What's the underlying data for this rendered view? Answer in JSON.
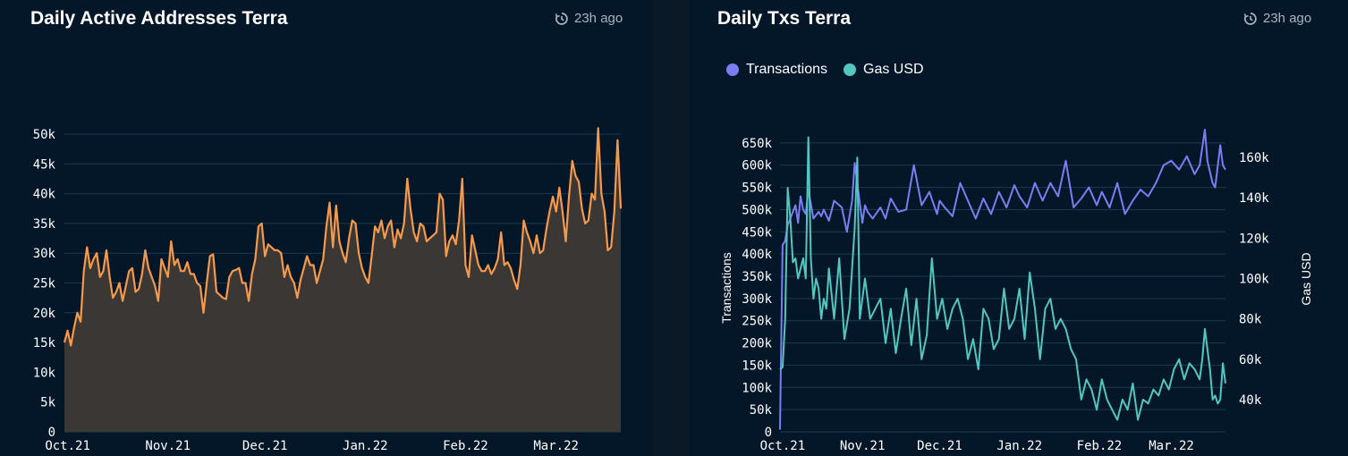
{
  "panels": {
    "left": {
      "title": "Daily Active Addresses Terra",
      "updated": "23h ago"
    },
    "right": {
      "title": "Daily Txs Terra",
      "updated": "23h ago"
    }
  },
  "chart_data": [
    {
      "type": "area",
      "title": "Daily Active Addresses Terra",
      "xlabel": "",
      "ylabel": "",
      "ylim": [
        0,
        50000
      ],
      "yticks": [
        0,
        5000,
        10000,
        15000,
        20000,
        25000,
        30000,
        35000,
        40000,
        45000,
        50000
      ],
      "ytick_labels": [
        "0",
        "5k",
        "10k",
        "15k",
        "20k",
        "25k",
        "30k",
        "35k",
        "40k",
        "45k",
        "50k"
      ],
      "x_start": "2021-09-30",
      "x_end": "2022-03-21",
      "xticks": [
        {
          "date": "2021-10-01",
          "label": "Oct.21"
        },
        {
          "date": "2021-11-01",
          "label": "Nov.21"
        },
        {
          "date": "2021-12-01",
          "label": "Dec.21"
        },
        {
          "date": "2022-01-01",
          "label": "Jan.22"
        },
        {
          "date": "2022-02-01",
          "label": "Feb.22"
        },
        {
          "date": "2022-03-01",
          "label": "Mar.22"
        }
      ],
      "grid": true,
      "series": [
        {
          "color": "#f7994a",
          "fill": "#3a3734",
          "x": [
            "2021-09-30",
            "2021-10-01",
            "2021-10-02",
            "2021-10-03",
            "2021-10-04",
            "2021-10-05",
            "2021-10-06",
            "2021-10-07",
            "2021-10-08",
            "2021-10-09",
            "2021-10-10",
            "2021-10-11",
            "2021-10-12",
            "2021-10-13",
            "2021-10-14",
            "2021-10-15",
            "2021-10-16",
            "2021-10-17",
            "2021-10-18",
            "2021-10-19",
            "2021-10-20",
            "2021-10-21",
            "2021-10-22",
            "2021-10-23",
            "2021-10-24",
            "2021-10-25",
            "2021-10-26",
            "2021-10-27",
            "2021-10-28",
            "2021-10-29",
            "2021-10-30",
            "2021-10-31",
            "2021-11-01",
            "2021-11-02",
            "2021-11-03",
            "2021-11-04",
            "2021-11-05",
            "2021-11-06",
            "2021-11-07",
            "2021-11-08",
            "2021-11-09",
            "2021-11-10",
            "2021-11-11",
            "2021-11-12",
            "2021-11-13",
            "2021-11-14",
            "2021-11-15",
            "2021-11-16",
            "2021-11-17",
            "2021-11-18",
            "2021-11-19",
            "2021-11-20",
            "2021-11-21",
            "2021-11-22",
            "2021-11-23",
            "2021-11-24",
            "2021-11-25",
            "2021-11-26",
            "2021-11-27",
            "2021-11-28",
            "2021-11-29",
            "2021-11-30",
            "2021-12-01",
            "2021-12-02",
            "2021-12-03",
            "2021-12-04",
            "2021-12-05",
            "2021-12-06",
            "2021-12-07",
            "2021-12-08",
            "2021-12-09",
            "2021-12-10",
            "2021-12-11",
            "2021-12-12",
            "2021-12-13",
            "2021-12-14",
            "2021-12-15",
            "2021-12-16",
            "2021-12-17",
            "2021-12-18",
            "2021-12-19",
            "2021-12-20",
            "2021-12-21",
            "2021-12-22",
            "2021-12-23",
            "2021-12-24",
            "2021-12-25",
            "2021-12-26",
            "2021-12-27",
            "2021-12-28",
            "2021-12-29",
            "2021-12-30",
            "2021-12-31",
            "2022-01-01",
            "2022-01-02",
            "2022-01-03",
            "2022-01-04",
            "2022-01-05",
            "2022-01-06",
            "2022-01-07",
            "2022-01-08",
            "2022-01-09",
            "2022-01-10",
            "2022-01-11",
            "2022-01-12",
            "2022-01-13",
            "2022-01-14",
            "2022-01-15",
            "2022-01-16",
            "2022-01-17",
            "2022-01-18",
            "2022-01-19",
            "2022-01-20",
            "2022-01-21",
            "2022-01-22",
            "2022-01-23",
            "2022-01-24",
            "2022-01-25",
            "2022-01-26",
            "2022-01-27",
            "2022-01-28",
            "2022-01-29",
            "2022-01-30",
            "2022-01-31",
            "2022-02-01",
            "2022-02-02",
            "2022-02-03",
            "2022-02-04",
            "2022-02-05",
            "2022-02-06",
            "2022-02-07",
            "2022-02-08",
            "2022-02-09",
            "2022-02-10",
            "2022-02-11",
            "2022-02-12",
            "2022-02-13",
            "2022-02-14",
            "2022-02-15",
            "2022-02-16",
            "2022-02-17",
            "2022-02-18",
            "2022-02-19",
            "2022-02-20",
            "2022-02-21",
            "2022-02-22",
            "2022-02-23",
            "2022-02-24",
            "2022-02-25",
            "2022-02-26",
            "2022-02-27",
            "2022-02-28",
            "2022-03-01",
            "2022-03-02",
            "2022-03-03",
            "2022-03-04",
            "2022-03-05",
            "2022-03-06",
            "2022-03-07",
            "2022-03-08",
            "2022-03-09",
            "2022-03-10",
            "2022-03-11",
            "2022-03-12",
            "2022-03-13",
            "2022-03-14",
            "2022-03-15",
            "2022-03-16",
            "2022-03-17",
            "2022-03-18",
            "2022-03-19",
            "2022-03-20",
            "2022-03-21"
          ],
          "values": [
            15000,
            17000,
            14500,
            17500,
            20000,
            18500,
            27000,
            31000,
            27500,
            29000,
            30000,
            26000,
            27000,
            30500,
            26000,
            22500,
            23500,
            25000,
            22000,
            24500,
            27000,
            27500,
            23500,
            24000,
            26500,
            30500,
            27500,
            26000,
            24500,
            22000,
            29000,
            27500,
            26000,
            32000,
            28000,
            29000,
            27000,
            27000,
            28500,
            26500,
            26500,
            25000,
            24500,
            20000,
            25000,
            29500,
            29800,
            23500,
            23000,
            22500,
            22300,
            26000,
            27000,
            27200,
            27500,
            25000,
            25000,
            22000,
            26500,
            29000,
            34500,
            35000,
            29500,
            31500,
            31000,
            30500,
            30500,
            30000,
            26000,
            28000,
            26000,
            25000,
            22500,
            25500,
            27500,
            29500,
            28000,
            28000,
            25000,
            27000,
            29000,
            34500,
            38500,
            31000,
            38000,
            32000,
            30000,
            28500,
            32500,
            35500,
            35000,
            30000,
            27500,
            26000,
            25000,
            29500,
            34500,
            33500,
            35500,
            32500,
            34500,
            35500,
            31000,
            34000,
            32500,
            35000,
            42500,
            37500,
            33500,
            32000,
            35000,
            34500,
            32000,
            32500,
            33000,
            33500,
            40000,
            39000,
            29500,
            32000,
            33000,
            31500,
            35500,
            42500,
            28000,
            26000,
            33000,
            30500,
            28000,
            27000,
            27000,
            28000,
            26500,
            27500,
            29000,
            33500,
            28000,
            28500,
            27500,
            25500,
            24000,
            28000,
            35500,
            33500,
            32000,
            30000,
            33000,
            30000,
            30500,
            34000,
            37000,
            39500,
            37000,
            41000,
            37000,
            32000,
            39500,
            45500,
            43000,
            42000,
            37500,
            35000,
            35500,
            40000,
            39000,
            51000,
            40000,
            37000,
            30500,
            31000,
            37000,
            49000,
            37500
          ]
        }
      ]
    },
    {
      "type": "line",
      "title": "Daily Txs Terra",
      "ylabel": "Transactions",
      "y2label": "Gas USD",
      "ylim": [
        0,
        690000
      ],
      "y2lim": [
        24000,
        176000
      ],
      "yticks": [
        0,
        50000,
        100000,
        150000,
        200000,
        250000,
        300000,
        350000,
        400000,
        450000,
        500000,
        550000,
        600000,
        650000
      ],
      "ytick_labels": [
        "0",
        "50k",
        "100k",
        "150k",
        "200k",
        "250k",
        "300k",
        "350k",
        "400k",
        "450k",
        "500k",
        "550k",
        "600k",
        "650k"
      ],
      "y2ticks": [
        40000,
        60000,
        80000,
        100000,
        120000,
        140000,
        160000
      ],
      "y2tick_labels": [
        "40k",
        "60k",
        "80k",
        "100k",
        "120k",
        "140k",
        "160k"
      ],
      "x_start": "2021-09-30",
      "x_end": "2022-03-22",
      "xticks": [
        {
          "date": "2021-10-01",
          "label": "Oct.21"
        },
        {
          "date": "2021-11-01",
          "label": "Nov.21"
        },
        {
          "date": "2021-12-01",
          "label": "Dec.21"
        },
        {
          "date": "2022-01-01",
          "label": "Jan.22"
        },
        {
          "date": "2022-02-01",
          "label": "Feb.22"
        },
        {
          "date": "2022-03-01",
          "label": "Mar.22"
        }
      ],
      "legend": "top-left",
      "grid": true,
      "series": [
        {
          "name": "Transactions",
          "color": "#7b7ef2",
          "axis": "left",
          "x": [
            "2021-09-30",
            "2021-10-01",
            "2021-10-02",
            "2021-10-03",
            "2021-10-04",
            "2021-10-06",
            "2021-10-07",
            "2021-10-08",
            "2021-10-09",
            "2021-10-10",
            "2021-10-11",
            "2021-10-13",
            "2021-10-15",
            "2021-10-16",
            "2021-10-17",
            "2021-10-19",
            "2021-10-21",
            "2021-10-24",
            "2021-10-26",
            "2021-10-28",
            "2021-10-29",
            "2021-11-01",
            "2021-11-02",
            "2021-11-03",
            "2021-11-05",
            "2021-11-08",
            "2021-11-10",
            "2021-11-12",
            "2021-11-15",
            "2021-11-18",
            "2021-11-21",
            "2021-11-24",
            "2021-11-27",
            "2021-11-30",
            "2021-12-01",
            "2021-12-03",
            "2021-12-06",
            "2021-12-09",
            "2021-12-12",
            "2021-12-15",
            "2021-12-18",
            "2021-12-21",
            "2021-12-24",
            "2021-12-27",
            "2021-12-30",
            "2022-01-01",
            "2022-01-04",
            "2022-01-07",
            "2022-01-10",
            "2022-01-13",
            "2022-01-16",
            "2022-01-19",
            "2022-01-22",
            "2022-01-25",
            "2022-01-28",
            "2022-01-31",
            "2022-02-02",
            "2022-02-05",
            "2022-02-08",
            "2022-02-11",
            "2022-02-14",
            "2022-02-17",
            "2022-02-20",
            "2022-02-23",
            "2022-02-26",
            "2022-03-01",
            "2022-03-04",
            "2022-03-07",
            "2022-03-10",
            "2022-03-12",
            "2022-03-14",
            "2022-03-15",
            "2022-03-17",
            "2022-03-18",
            "2022-03-20",
            "2022-03-21",
            "2022-03-22"
          ],
          "values": [
            5000,
            420000,
            430000,
            465000,
            480000,
            510000,
            470000,
            530000,
            500000,
            490000,
            545000,
            480000,
            495000,
            485000,
            500000,
            475000,
            520000,
            505000,
            450000,
            520000,
            605000,
            470000,
            510000,
            495000,
            480000,
            505000,
            480000,
            525000,
            495000,
            500000,
            600000,
            510000,
            540000,
            490000,
            520000,
            505000,
            485000,
            560000,
            520000,
            480000,
            525000,
            490000,
            540000,
            505000,
            555000,
            530000,
            505000,
            560000,
            520000,
            560000,
            530000,
            610000,
            505000,
            525000,
            550000,
            510000,
            540000,
            505000,
            560000,
            490000,
            520000,
            545000,
            530000,
            560000,
            600000,
            610000,
            590000,
            620000,
            580000,
            600000,
            680000,
            610000,
            560000,
            550000,
            645000,
            600000,
            590000
          ]
        },
        {
          "name": "Gas USD",
          "color": "#52c6bf",
          "axis": "right",
          "x": [
            "2021-09-30",
            "2021-10-01",
            "2021-10-02",
            "2021-10-03",
            "2021-10-04",
            "2021-10-05",
            "2021-10-06",
            "2021-10-07",
            "2021-10-08",
            "2021-10-09",
            "2021-10-10",
            "2021-10-11",
            "2021-10-12",
            "2021-10-13",
            "2021-10-14",
            "2021-10-15",
            "2021-10-16",
            "2021-10-17",
            "2021-10-18",
            "2021-10-19",
            "2021-10-21",
            "2021-10-23",
            "2021-10-25",
            "2021-10-27",
            "2021-10-29",
            "2021-10-30",
            "2021-10-31",
            "2021-11-02",
            "2021-11-04",
            "2021-11-06",
            "2021-11-08",
            "2021-11-10",
            "2021-11-12",
            "2021-11-14",
            "2021-11-16",
            "2021-11-18",
            "2021-11-20",
            "2021-11-22",
            "2021-11-24",
            "2021-11-26",
            "2021-11-28",
            "2021-11-30",
            "2021-12-02",
            "2021-12-04",
            "2021-12-06",
            "2021-12-08",
            "2021-12-10",
            "2021-12-12",
            "2021-12-14",
            "2021-12-16",
            "2021-12-18",
            "2021-12-20",
            "2021-12-22",
            "2021-12-24",
            "2021-12-26",
            "2021-12-28",
            "2021-12-30",
            "2022-01-01",
            "2022-01-03",
            "2022-01-05",
            "2022-01-07",
            "2022-01-09",
            "2022-01-11",
            "2022-01-13",
            "2022-01-15",
            "2022-01-17",
            "2022-01-19",
            "2022-01-21",
            "2022-01-23",
            "2022-01-25",
            "2022-01-27",
            "2022-01-29",
            "2022-01-31",
            "2022-02-02",
            "2022-02-04",
            "2022-02-06",
            "2022-02-08",
            "2022-02-10",
            "2022-02-12",
            "2022-02-14",
            "2022-02-16",
            "2022-02-18",
            "2022-02-20",
            "2022-02-22",
            "2022-02-24",
            "2022-02-26",
            "2022-02-28",
            "2022-03-02",
            "2022-03-04",
            "2022-03-06",
            "2022-03-08",
            "2022-03-10",
            "2022-03-12",
            "2022-03-13",
            "2022-03-14",
            "2022-03-15",
            "2022-03-16",
            "2022-03-17",
            "2022-03-18",
            "2022-03-19",
            "2022-03-20",
            "2022-03-21",
            "2022-03-22"
          ],
          "values": [
            55000,
            56000,
            80000,
            145000,
            130000,
            108000,
            110000,
            100000,
            105000,
            110000,
            100000,
            170000,
            110000,
            90000,
            100000,
            95000,
            80000,
            90000,
            85000,
            105000,
            80000,
            110000,
            70000,
            85000,
            125000,
            160000,
            80000,
            100000,
            80000,
            85000,
            90000,
            68000,
            85000,
            63000,
            80000,
            95000,
            67000,
            90000,
            60000,
            72000,
            110000,
            80000,
            90000,
            75000,
            85000,
            90000,
            80000,
            60000,
            70000,
            55000,
            85000,
            80000,
            65000,
            70000,
            95000,
            75000,
            80000,
            95000,
            70000,
            103000,
            85000,
            60000,
            85000,
            90000,
            75000,
            80000,
            75000,
            65000,
            60000,
            40000,
            50000,
            45000,
            35000,
            50000,
            40000,
            35000,
            30000,
            40000,
            35000,
            48000,
            30000,
            40000,
            38000,
            45000,
            42000,
            50000,
            45000,
            55000,
            60000,
            50000,
            58000,
            55000,
            50000,
            60000,
            75000,
            65000,
            55000,
            40000,
            42000,
            38000,
            40000,
            58000,
            48000
          ]
        }
      ]
    }
  ]
}
